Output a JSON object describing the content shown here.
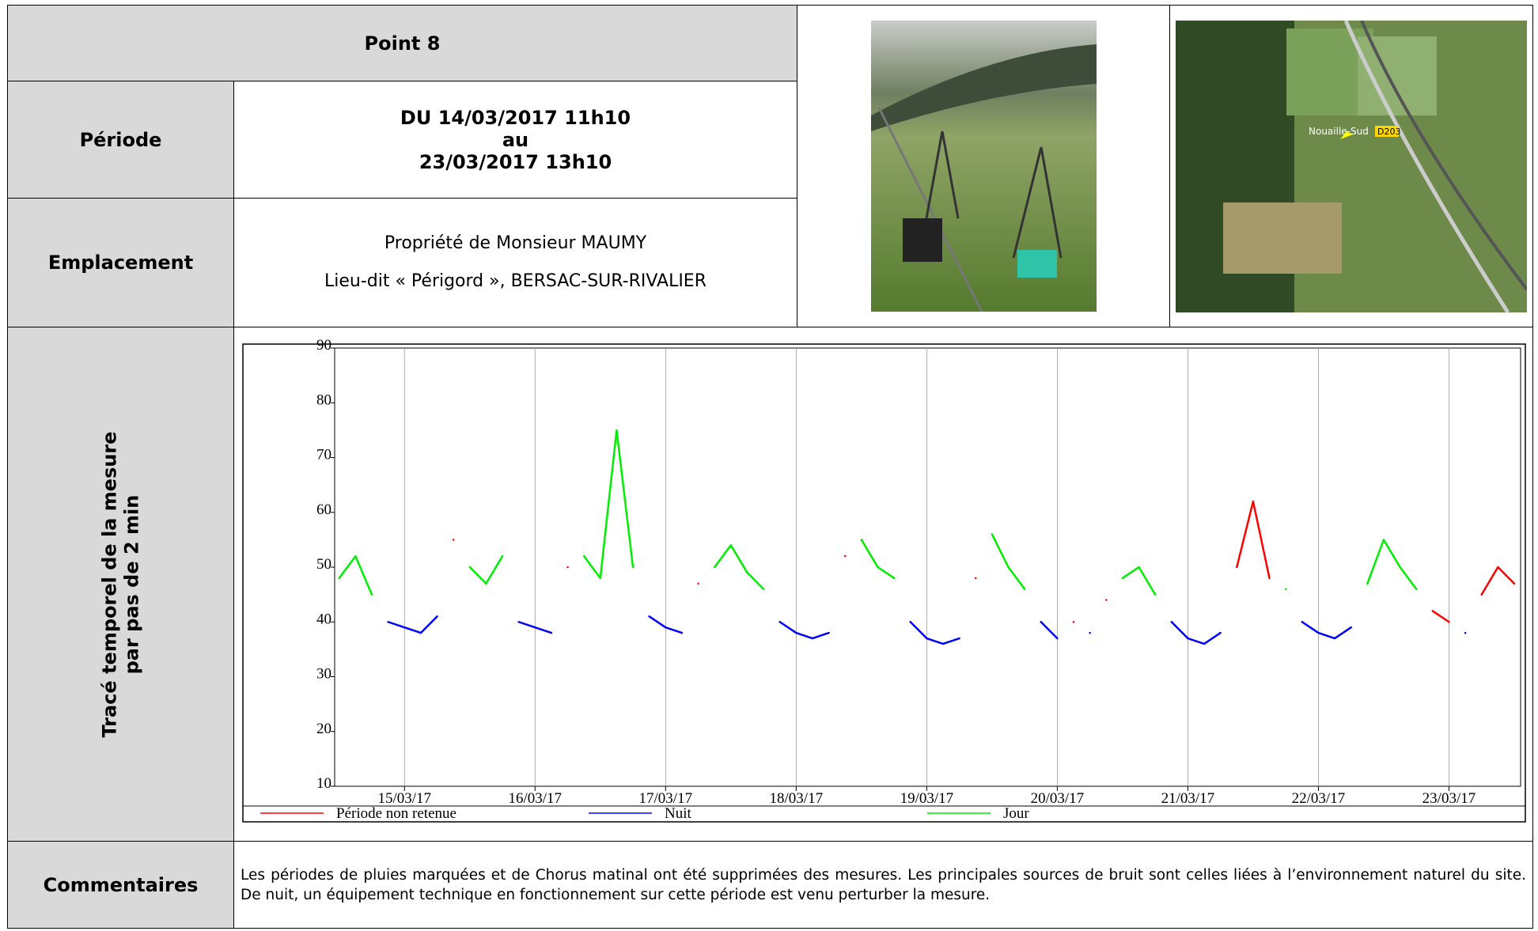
{
  "header": {
    "title": "Point 8"
  },
  "rows": [
    {
      "label": "Période",
      "lines": [
        "DU 14/03/2017 11h10",
        "au",
        "23/03/2017 13h10"
      ]
    },
    {
      "label": "Emplacement",
      "lines": [
        "Propriété de Monsieur MAUMY",
        "Lieu-dit « Périgord », BERSAC-SUR-RIVALIER"
      ]
    }
  ],
  "map": {
    "labels": [
      "Nouaille-Sud",
      "D203"
    ]
  },
  "chart_label": [
    "Tracé temporel de la mesure",
    "par pas de 2 min"
  ],
  "chart_data": {
    "type": "line",
    "x": [
      "2017-03-14T12:00",
      "2017-03-14T15:00",
      "2017-03-14T18:00",
      "2017-03-14T21:00",
      "2017-03-15T00:00",
      "2017-03-15T03:00",
      "2017-03-15T06:00",
      "2017-03-15T09:00",
      "2017-03-15T12:00",
      "2017-03-15T15:00",
      "2017-03-15T18:00",
      "2017-03-15T21:00",
      "2017-03-16T00:00",
      "2017-03-16T03:00",
      "2017-03-16T06:00",
      "2017-03-16T09:00",
      "2017-03-16T12:00",
      "2017-03-16T15:00",
      "2017-03-16T18:00",
      "2017-03-16T21:00",
      "2017-03-17T00:00",
      "2017-03-17T03:00",
      "2017-03-17T06:00",
      "2017-03-17T09:00",
      "2017-03-17T12:00",
      "2017-03-17T15:00",
      "2017-03-17T18:00",
      "2017-03-17T21:00",
      "2017-03-18T00:00",
      "2017-03-18T03:00",
      "2017-03-18T06:00",
      "2017-03-18T09:00",
      "2017-03-18T12:00",
      "2017-03-18T15:00",
      "2017-03-18T18:00",
      "2017-03-18T21:00",
      "2017-03-19T00:00",
      "2017-03-19T03:00",
      "2017-03-19T06:00",
      "2017-03-19T09:00",
      "2017-03-19T12:00",
      "2017-03-19T15:00",
      "2017-03-19T18:00",
      "2017-03-19T21:00",
      "2017-03-20T00:00",
      "2017-03-20T03:00",
      "2017-03-20T06:00",
      "2017-03-20T09:00",
      "2017-03-20T12:00",
      "2017-03-20T15:00",
      "2017-03-20T18:00",
      "2017-03-20T21:00",
      "2017-03-21T00:00",
      "2017-03-21T03:00",
      "2017-03-21T06:00",
      "2017-03-21T09:00",
      "2017-03-21T12:00",
      "2017-03-21T15:00",
      "2017-03-21T18:00",
      "2017-03-21T21:00",
      "2017-03-22T00:00",
      "2017-03-22T03:00",
      "2017-03-22T06:00",
      "2017-03-22T09:00",
      "2017-03-22T12:00",
      "2017-03-22T15:00",
      "2017-03-22T18:00",
      "2017-03-22T21:00",
      "2017-03-23T00:00",
      "2017-03-23T03:00",
      "2017-03-23T06:00",
      "2017-03-23T09:00",
      "2017-03-23T12:00"
    ],
    "series": [
      {
        "name": "Période non retenue",
        "color": "#ff0000",
        "values": [
          null,
          null,
          null,
          null,
          null,
          null,
          null,
          55,
          null,
          null,
          null,
          null,
          null,
          null,
          50,
          null,
          null,
          null,
          null,
          null,
          null,
          null,
          47,
          null,
          null,
          null,
          null,
          null,
          null,
          null,
          null,
          52,
          null,
          null,
          null,
          null,
          null,
          null,
          null,
          48,
          null,
          null,
          null,
          null,
          null,
          40,
          null,
          44,
          null,
          null,
          null,
          null,
          null,
          null,
          null,
          50,
          62,
          48,
          null,
          null,
          null,
          null,
          null,
          null,
          null,
          null,
          null,
          42,
          40,
          null,
          45,
          50,
          47
        ]
      },
      {
        "name": "Nuit",
        "color": "#0000ff",
        "values": [
          null,
          null,
          null,
          40,
          39,
          38,
          41,
          null,
          null,
          null,
          null,
          40,
          39,
          38,
          null,
          null,
          null,
          null,
          null,
          41,
          39,
          38,
          null,
          null,
          null,
          null,
          null,
          40,
          38,
          37,
          38,
          null,
          null,
          null,
          null,
          40,
          37,
          36,
          37,
          null,
          null,
          null,
          null,
          40,
          37,
          null,
          38,
          null,
          null,
          null,
          null,
          40,
          37,
          36,
          38,
          null,
          null,
          null,
          null,
          40,
          38,
          37,
          39,
          null,
          null,
          null,
          null,
          null,
          null,
          38,
          null,
          null,
          null
        ]
      },
      {
        "name": "Jour",
        "color": "#00ee00",
        "values": [
          48,
          52,
          45,
          null,
          null,
          null,
          null,
          null,
          50,
          47,
          52,
          null,
          null,
          null,
          null,
          52,
          48,
          75,
          50,
          null,
          null,
          null,
          null,
          50,
          54,
          49,
          46,
          null,
          null,
          null,
          null,
          null,
          55,
          50,
          48,
          null,
          null,
          null,
          null,
          null,
          56,
          50,
          46,
          null,
          null,
          null,
          null,
          null,
          48,
          50,
          45,
          null,
          null,
          null,
          null,
          null,
          null,
          null,
          46,
          null,
          null,
          null,
          null,
          47,
          55,
          50,
          46,
          null,
          null,
          null,
          null,
          null,
          null
        ]
      }
    ],
    "xlim": [
      "2017-03-14T11:10",
      "2017-03-23T13:10"
    ],
    "xticks": [
      {
        "value": "2017-03-15T00:00",
        "label": "15/03/17"
      },
      {
        "value": "2017-03-16T00:00",
        "label": "16/03/17"
      },
      {
        "value": "2017-03-17T00:00",
        "label": "17/03/17"
      },
      {
        "value": "2017-03-18T00:00",
        "label": "18/03/17"
      },
      {
        "value": "2017-03-19T00:00",
        "label": "19/03/17"
      },
      {
        "value": "2017-03-20T00:00",
        "label": "20/03/17"
      },
      {
        "value": "2017-03-21T00:00",
        "label": "21/03/17"
      },
      {
        "value": "2017-03-22T00:00",
        "label": "22/03/17"
      },
      {
        "value": "2017-03-23T00:00",
        "label": "23/03/17"
      }
    ],
    "ylim": [
      10,
      90
    ],
    "yticks": [
      10,
      20,
      30,
      40,
      50,
      60,
      70,
      80,
      90
    ],
    "grid": "x",
    "legend": "bottom"
  },
  "comments": {
    "label": "Commentaires",
    "text": "Les périodes de pluies marquées et de Chorus matinal ont été supprimées des mesures. Les principales sources de bruit sont celles liées à l’environnement naturel du site. De nuit, un équipement technique en fonctionnement sur cette période est venu perturber la mesure."
  }
}
